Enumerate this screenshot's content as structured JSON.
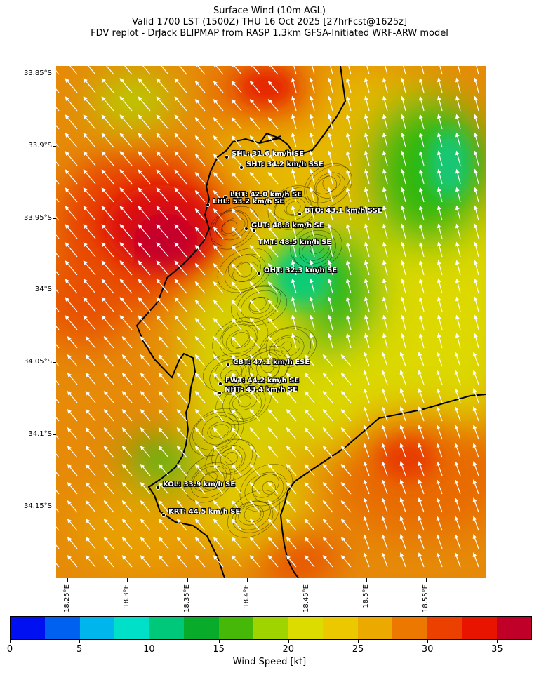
{
  "title_lines": [
    "Surface Wind (10m AGL)",
    "Valid 1700 LST (1500Z) THU 16 Oct 2025 [27hrFcst@1625z]",
    "FDV replot - DrJack BLIPMAP from RASP 1.3km GFSA-Initiated WRF-ARW model"
  ],
  "lat_labels": [
    "33.85°S",
    "33.9°S",
    "33.95°S",
    "34°S",
    "34.05°S",
    "34.1°S",
    "34.15°S"
  ],
  "lon_labels": [
    "18.25°E",
    "18.3°E",
    "18.35°E",
    "18.4°E",
    "18.45°E",
    "18.5°E",
    "18.55°E"
  ],
  "stations": [
    {
      "code": "SHL",
      "label": "SHL: 31.6 km/h SE"
    },
    {
      "code": "SHT",
      "label": "SHT: 34.2 km/h SSE"
    },
    {
      "code": "LHT",
      "label": "LHT: 42.0 km/h SE"
    },
    {
      "code": "LHL",
      "label": "LHL: 53.2 km/h SE"
    },
    {
      "code": "BTO",
      "label": "BTO: 43.1 km/h SSE"
    },
    {
      "code": "GUT",
      "label": "GUT: 48.8 km/h SE"
    },
    {
      "code": "TMT",
      "label": "TMT: 48.5 km/h SE"
    },
    {
      "code": "OHT",
      "label": "OHT: 32.3 km/h SE"
    },
    {
      "code": "CBT",
      "label": "CBT: 47.1 km/h ESE"
    },
    {
      "code": "FWT",
      "label": "FWT: 44.2 km/h SE"
    },
    {
      "code": "NHT",
      "label": "NHT: 43.4 km/h SE"
    },
    {
      "code": "KOL",
      "label": "KOL: 33.9 km/h SE"
    },
    {
      "code": "KRT",
      "label": "KRT: 44.5 km/h SE"
    }
  ],
  "colorbar": {
    "title": "Wind Speed [kt]",
    "tick_labels": [
      "0",
      "5",
      "10",
      "15",
      "20",
      "25",
      "30",
      "35"
    ],
    "colors": [
      "#0010f0",
      "#0060f0",
      "#00b4ec",
      "#00e0c8",
      "#00c87a",
      "#08ab2a",
      "#46b808",
      "#a0d400",
      "#dcdc00",
      "#ecc800",
      "#ecaa00",
      "#ec7800",
      "#ec4000",
      "#e81400",
      "#c00028"
    ]
  },
  "colors": {
    "wind_high": "#d80a10",
    "wind_mid": "#e08a08",
    "wind_low": "#14c870",
    "arrows": "#ffffff",
    "coastline": "#000000"
  }
}
